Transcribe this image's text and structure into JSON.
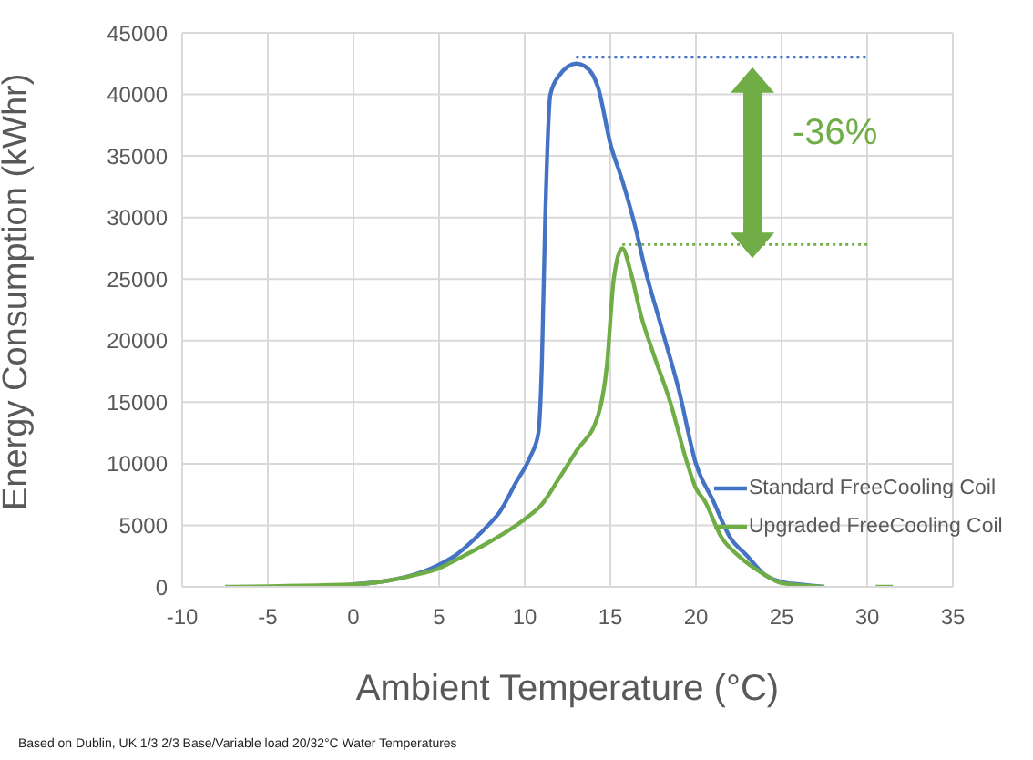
{
  "chart_data": {
    "type": "line",
    "xlabel": "Ambient Temperature (°C)",
    "ylabel": "Energy Consumption (kWhr)",
    "xlim": [
      -10,
      35
    ],
    "xticks": [
      -10,
      -5,
      0,
      5,
      10,
      15,
      20,
      25,
      30,
      35
    ],
    "ylim": [
      0,
      45000
    ],
    "yticks": [
      0,
      5000,
      10000,
      15000,
      20000,
      25000,
      30000,
      35000,
      40000,
      45000
    ],
    "grid": true,
    "legend": "right",
    "marker": "none",
    "line_style": "solid",
    "series": [
      {
        "name": "Standard FreeCooling Coil",
        "color": "#4472c4",
        "x": [
          0,
          2,
          4,
          5,
          6,
          7,
          8,
          8.5,
          9.5,
          10.3,
          10.8,
          11,
          11.2,
          11.5,
          12,
          13,
          13.5,
          14.3,
          15,
          15.7,
          16.5,
          17,
          18,
          19,
          20,
          21,
          22,
          23,
          24,
          25,
          26,
          27.5
        ],
        "values": [
          200,
          500,
          1200,
          1800,
          2600,
          3800,
          5200,
          6000,
          8500,
          10500,
          12500,
          18000,
          30000,
          40000,
          41500,
          42500,
          42300,
          40500,
          36000,
          33000,
          29000,
          26000,
          21000,
          16000,
          10000,
          7000,
          4000,
          2500,
          1000,
          400,
          200,
          0
        ]
      },
      {
        "name": "Upgraded FreeCooling Coil",
        "color": "#70ad47",
        "x": [
          -7.5,
          0,
          2,
          4,
          5,
          6,
          8,
          10,
          11,
          12,
          13,
          14.3,
          14.8,
          15.2,
          15.7,
          16.2,
          16.8,
          17.5,
          18.5,
          19.5,
          20,
          20.5,
          21.5,
          22.5,
          24,
          25,
          27.5,
          29,
          30.5,
          31.5
        ],
        "values": [
          0,
          200,
          500,
          1100,
          1500,
          2200,
          3700,
          5500,
          6700,
          8800,
          11000,
          14000,
          18000,
          25000,
          27500,
          25500,
          22000,
          19000,
          15000,
          10000,
          8000,
          7000,
          4000,
          2500,
          1000,
          300,
          0,
          null,
          0,
          0
        ]
      },
      {
        "type": "line",
        "color": "#4472c4",
        "line_style": "dotted",
        "x": [
          13,
          30
        ],
        "values": [
          43000,
          43000
        ]
      },
      {
        "type": "line",
        "color": "#70ad47",
        "line_style": "dotted",
        "x": [
          15.7,
          30
        ],
        "values": [
          27800,
          27800
        ]
      }
    ],
    "annotations": [
      "-36%",
      "Based on Dublin, UK 1/3 2/3 Base/Variable load 20/32°C Water Temperatures"
    ]
  }
}
